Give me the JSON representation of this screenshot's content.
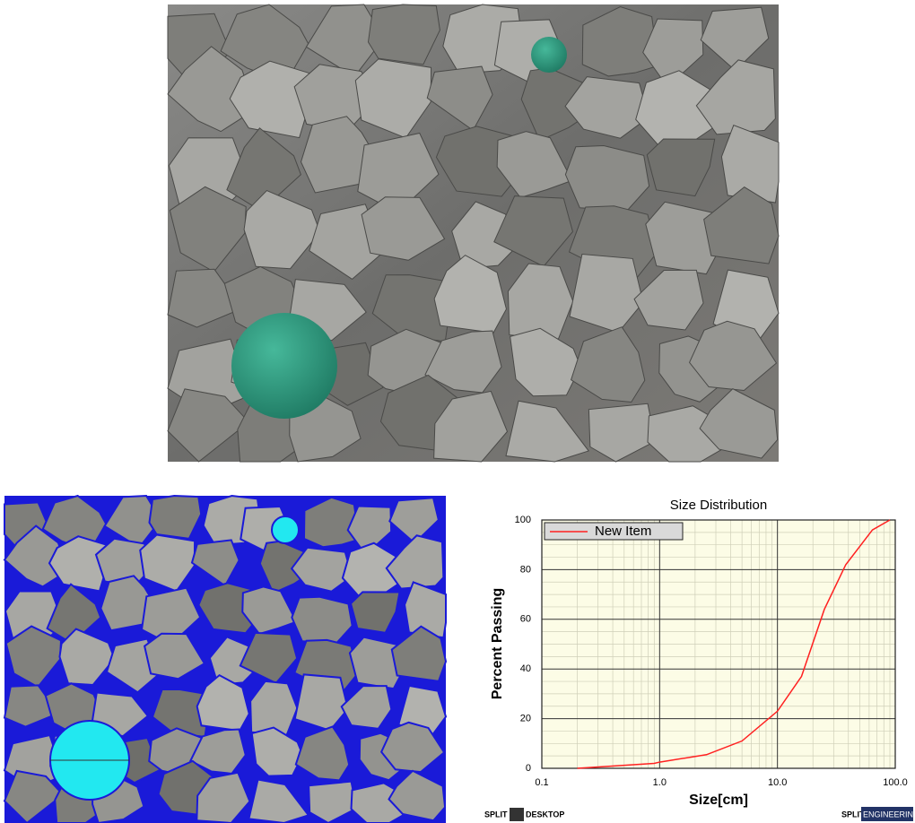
{
  "chart_data": {
    "type": "line",
    "title": "Size Distribution",
    "x_label": "Size[cm]",
    "y_label": "Percent Passing",
    "xscale": "log",
    "xlim": [
      0.1,
      100
    ],
    "xticks": [
      0.1,
      {
        "value": 1,
        "label": "1.0"
      },
      {
        "value": 10,
        "label": "10.0"
      },
      {
        "value": 100,
        "label": "100.0"
      }
    ],
    "ylim": [
      0,
      100
    ],
    "yticks": [
      0,
      20,
      40,
      60,
      80,
      100
    ],
    "grid": true,
    "minor_grid": true,
    "legend": "upper left",
    "x": [
      0.2,
      0.9,
      1.0,
      2.5,
      5,
      10,
      16,
      25,
      38,
      64,
      90
    ],
    "series": [
      {
        "name": "New Item",
        "color": "#ff2020",
        "values": [
          0,
          2,
          2.5,
          5.5,
          11,
          23,
          37,
          64,
          82,
          96,
          100
        ]
      }
    ]
  },
  "logos": [
    "SPLIT",
    "DESKTOP",
    "SPLIT",
    "ENGINEERING"
  ]
}
